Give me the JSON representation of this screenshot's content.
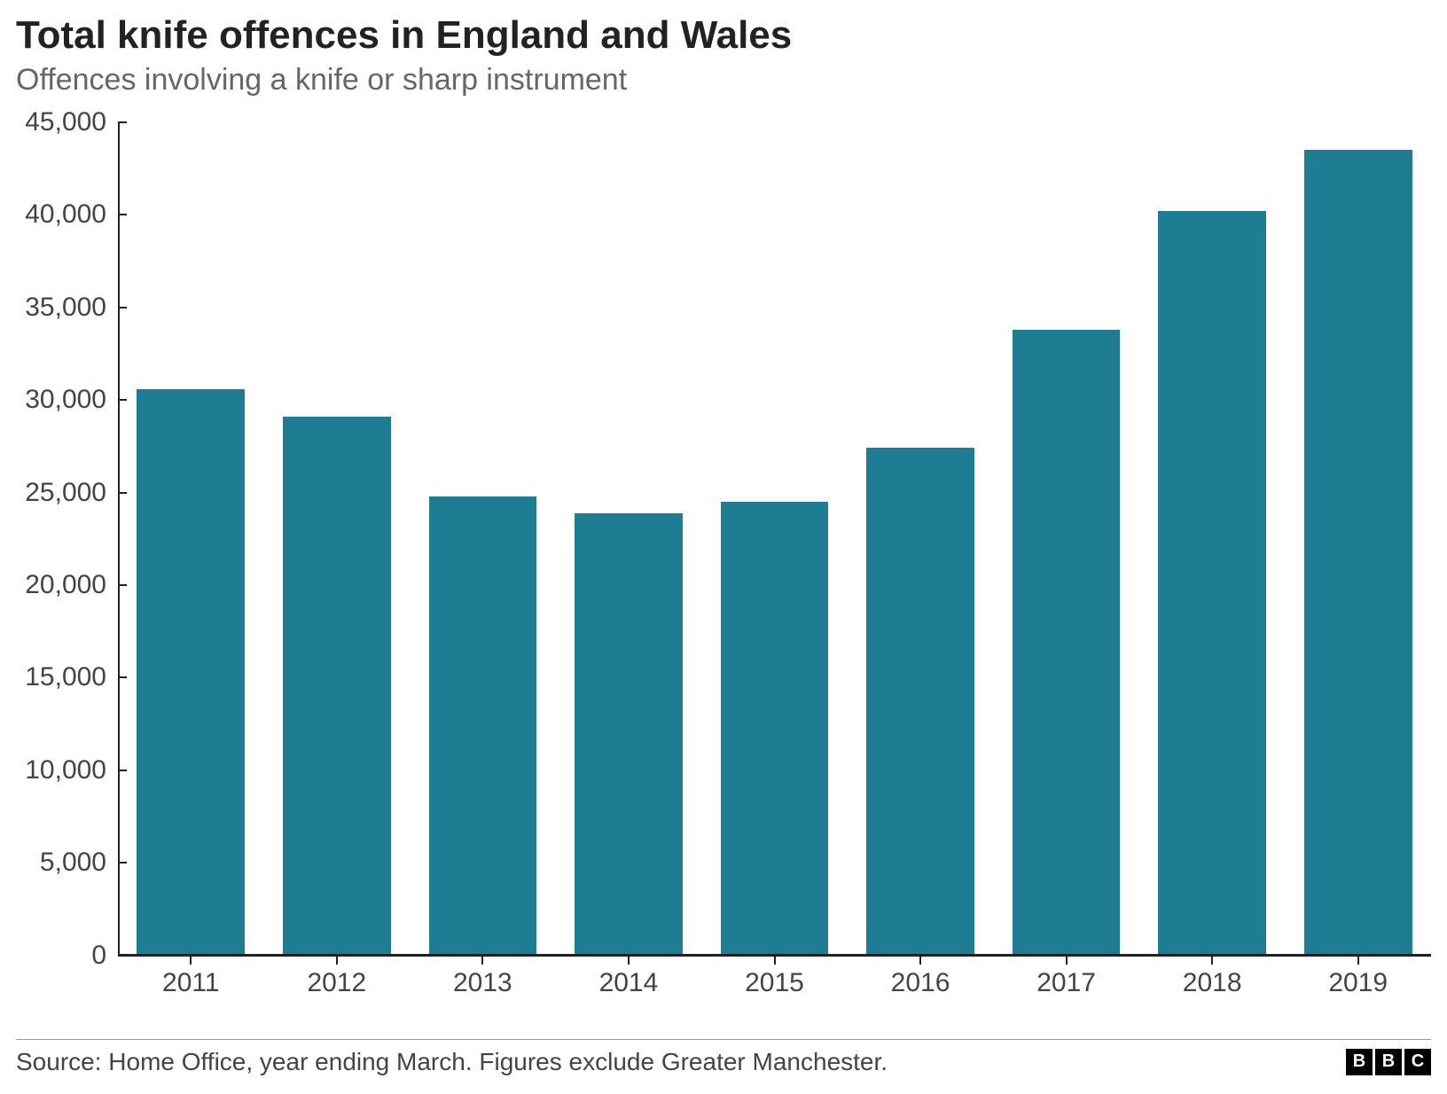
{
  "header": {
    "title": "Total knife offences in England and Wales",
    "subtitle": "Offences involving a knife or sharp instrument"
  },
  "chart": {
    "type": "bar",
    "categories": [
      "2011",
      "2012",
      "2013",
      "2014",
      "2015",
      "2016",
      "2017",
      "2018",
      "2019"
    ],
    "values": [
      30600,
      29100,
      24800,
      23900,
      24500,
      27400,
      33800,
      40200,
      43500
    ],
    "bar_color": "#1e7c93",
    "background_color": "#ffffff",
    "axis_color": "#222222",
    "tick_label_color": "#444444",
    "title_color": "#222222",
    "subtitle_color": "#666666",
    "ylim": [
      0,
      45000
    ],
    "ytick_step": 5000,
    "ytick_labels": [
      "0",
      "5,000",
      "10,000",
      "15,000",
      "20,000",
      "25,000",
      "30,000",
      "35,000",
      "40,000",
      "45,000"
    ],
    "bar_width_ratio": 0.74,
    "title_fontsize": 44,
    "subtitle_fontsize": 34,
    "tick_fontsize": 30,
    "font_family": "Arial, Helvetica, sans-serif"
  },
  "footer": {
    "source": "Source: Home Office, year ending March. Figures exclude Greater Manchester.",
    "divider_color": "#999999",
    "logo": [
      "B",
      "B",
      "C"
    ],
    "logo_bg": "#000000",
    "logo_fg": "#ffffff"
  }
}
